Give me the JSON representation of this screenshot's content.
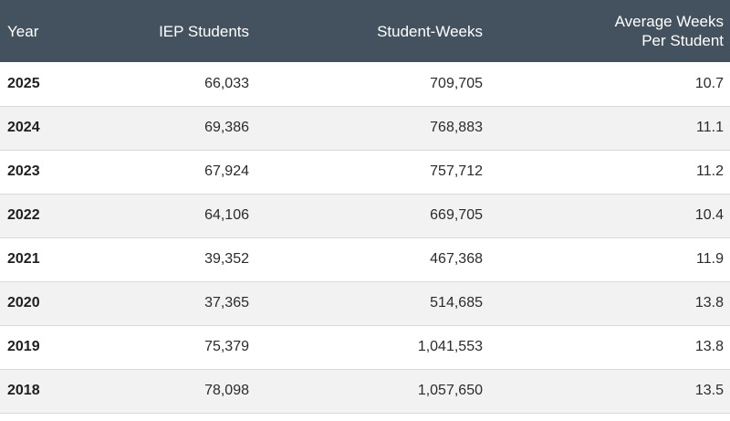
{
  "chart_data": {
    "type": "table",
    "columns": [
      "Year",
      "IEP Students",
      "Student-Weeks",
      "Average Weeks\nPer Student"
    ],
    "rows": [
      [
        "2025",
        "66,033",
        "709,705",
        "10.7"
      ],
      [
        "2024",
        "69,386",
        "768,883",
        "11.1"
      ],
      [
        "2023",
        "67,924",
        "757,712",
        "11.2"
      ],
      [
        "2022",
        "64,106",
        "669,705",
        "10.4"
      ],
      [
        "2021",
        "39,352",
        "467,368",
        "11.9"
      ],
      [
        "2020",
        "37,365",
        "514,685",
        "13.8"
      ],
      [
        "2019",
        "75,379",
        "1,041,553",
        "13.8"
      ],
      [
        "2018",
        "78,098",
        "1,057,650",
        "13.5"
      ]
    ]
  },
  "colors": {
    "header_background": "#44525f",
    "header_text": "#ffffff",
    "row_alt_background": "#f2f2f2",
    "row_border": "#d9d9d9"
  }
}
